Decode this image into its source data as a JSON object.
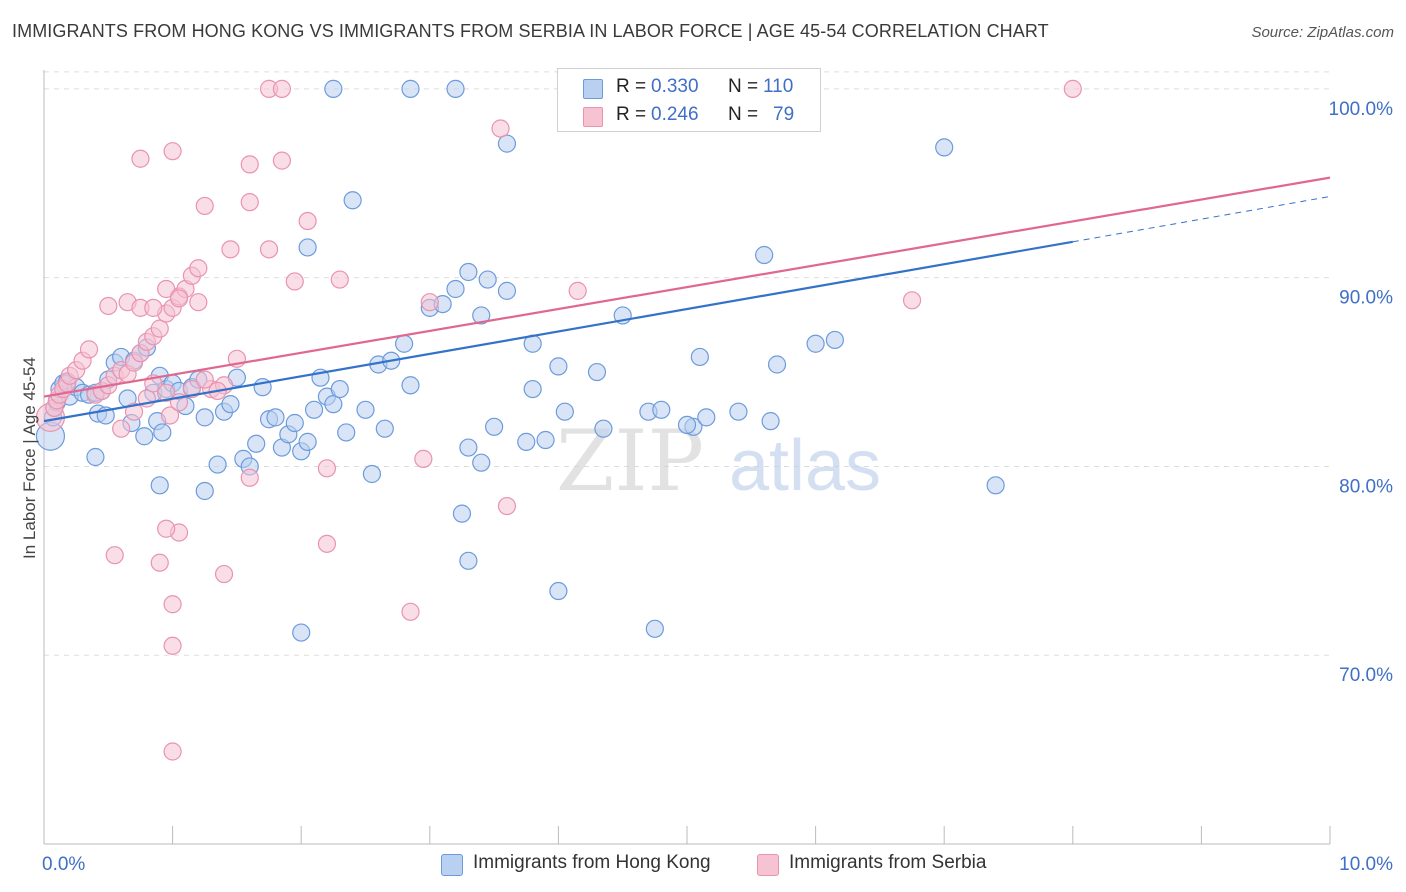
{
  "header": {
    "title": "IMMIGRANTS FROM HONG KONG VS IMMIGRANTS FROM SERBIA IN LABOR FORCE | AGE 45-54 CORRELATION CHART",
    "source": "Source: ZipAtlas.com"
  },
  "watermark": {
    "zip": "ZIP",
    "atlas": "atlas"
  },
  "legend": {
    "r_label": "R =",
    "n_label": "N =",
    "rows": [
      {
        "r": "0.330",
        "n": "110"
      },
      {
        "r": "0.246",
        "n": "79"
      }
    ]
  },
  "colors": {
    "hong_kong": "#6c9bdc",
    "hong_kong_fill": "#b9d0f0",
    "hong_kong_line": "#3372c9",
    "serbia": "#e993b0",
    "serbia_fill": "#f6c3d3",
    "serbia_line": "#e0688f",
    "axis_text": "#3f6fc6",
    "grid": "#dddddd"
  },
  "chart_data": {
    "type": "scatter",
    "title": "IMMIGRANTS FROM HONG KONG VS IMMIGRANTS FROM SERBIA IN LABOR FORCE | AGE 45-54 CORRELATION CHART",
    "xlabel": "",
    "ylabel": "In Labor Force | Age 45-54",
    "x_tick_labels": [
      "0.0%",
      "10.0%"
    ],
    "y_tick_labels": [
      "70.0%",
      "80.0%",
      "90.0%",
      "100.0%"
    ],
    "y_ticks": [
      70,
      80,
      90,
      100
    ],
    "xlim": [
      0,
      10
    ],
    "ylim": [
      60,
      101
    ],
    "grid": true,
    "legend_position": "top-center",
    "series": [
      {
        "name": "Immigrants from Hong Kong",
        "r": 0.33,
        "n": 110,
        "trend": {
          "x0": 0.0,
          "y0": 82.4,
          "x1": 8.0,
          "y1": 91.9,
          "dashed_to_x": 10.0,
          "dashed_to_y": 94.3
        },
        "points": [
          [
            0.05,
            81.6
          ],
          [
            0.07,
            82.6
          ],
          [
            0.08,
            83.1
          ],
          [
            0.1,
            83.4
          ],
          [
            0.12,
            84.1
          ],
          [
            0.15,
            84.4
          ],
          [
            0.18,
            84.5
          ],
          [
            0.2,
            83.7
          ],
          [
            0.25,
            84.2
          ],
          [
            0.3,
            83.9
          ],
          [
            0.35,
            83.8
          ],
          [
            0.4,
            83.9
          ],
          [
            0.45,
            84.0
          ],
          [
            0.5,
            84.6
          ],
          [
            0.55,
            85.5
          ],
          [
            0.6,
            85.8
          ],
          [
            0.7,
            85.6
          ],
          [
            0.75,
            86.0
          ],
          [
            0.8,
            86.3
          ],
          [
            0.85,
            83.9
          ],
          [
            0.9,
            84.8
          ],
          [
            0.95,
            84.1
          ],
          [
            1.0,
            84.4
          ],
          [
            1.05,
            84.0
          ],
          [
            1.1,
            83.2
          ],
          [
            1.15,
            84.2
          ],
          [
            0.42,
            82.8
          ],
          [
            0.48,
            82.7
          ],
          [
            0.65,
            83.6
          ],
          [
            0.68,
            82.3
          ],
          [
            0.78,
            81.6
          ],
          [
            0.88,
            82.4
          ],
          [
            0.92,
            81.8
          ],
          [
            1.2,
            84.6
          ],
          [
            1.25,
            82.6
          ],
          [
            1.35,
            80.1
          ],
          [
            1.4,
            82.9
          ],
          [
            1.45,
            83.3
          ],
          [
            1.5,
            84.7
          ],
          [
            1.55,
            80.4
          ],
          [
            1.6,
            80.0
          ],
          [
            1.65,
            81.2
          ],
          [
            1.7,
            84.2
          ],
          [
            1.75,
            82.5
          ],
          [
            1.8,
            82.6
          ],
          [
            1.85,
            81.0
          ],
          [
            1.9,
            81.7
          ],
          [
            1.95,
            82.3
          ],
          [
            2.0,
            80.8
          ],
          [
            2.05,
            81.3
          ],
          [
            2.1,
            83.0
          ],
          [
            2.15,
            84.7
          ],
          [
            2.2,
            83.7
          ],
          [
            2.25,
            83.3
          ],
          [
            2.3,
            84.1
          ],
          [
            2.35,
            81.8
          ],
          [
            2.5,
            83.0
          ],
          [
            2.6,
            85.4
          ],
          [
            2.65,
            82.0
          ],
          [
            2.7,
            85.6
          ],
          [
            2.8,
            86.5
          ],
          [
            2.85,
            84.3
          ],
          [
            3.0,
            88.4
          ],
          [
            3.1,
            88.6
          ],
          [
            3.2,
            89.4
          ],
          [
            3.3,
            90.3
          ],
          [
            3.4,
            88.0
          ],
          [
            3.45,
            89.9
          ],
          [
            3.6,
            89.3
          ],
          [
            3.8,
            86.5
          ],
          [
            4.0,
            85.3
          ],
          [
            4.3,
            85.0
          ],
          [
            4.5,
            88.0
          ],
          [
            4.7,
            82.9
          ],
          [
            4.8,
            83.0
          ],
          [
            5.05,
            82.1
          ],
          [
            5.1,
            85.8
          ],
          [
            5.15,
            82.6
          ],
          [
            5.6,
            91.2
          ],
          [
            5.7,
            85.4
          ],
          [
            6.0,
            86.5
          ],
          [
            6.15,
            86.7
          ],
          [
            7.0,
            96.9
          ],
          [
            7.4,
            79.0
          ],
          [
            0.4,
            80.5
          ],
          [
            0.9,
            79.0
          ],
          [
            1.25,
            78.7
          ],
          [
            2.55,
            79.6
          ],
          [
            2.0,
            71.2
          ],
          [
            3.25,
            77.5
          ],
          [
            3.3,
            75.0
          ],
          [
            3.3,
            81.0
          ],
          [
            3.4,
            80.2
          ],
          [
            3.5,
            82.1
          ],
          [
            4.0,
            73.4
          ],
          [
            3.75,
            81.3
          ],
          [
            3.8,
            84.1
          ],
          [
            3.9,
            81.4
          ],
          [
            4.05,
            82.9
          ],
          [
            4.35,
            82.0
          ],
          [
            4.75,
            71.4
          ],
          [
            5.0,
            82.2
          ],
          [
            5.4,
            82.9
          ],
          [
            5.65,
            82.4
          ],
          [
            2.4,
            94.1
          ],
          [
            2.05,
            91.6
          ],
          [
            2.25,
            100.0
          ],
          [
            2.85,
            100.0
          ],
          [
            3.2,
            100.0
          ],
          [
            3.6,
            97.1
          ]
        ]
      },
      {
        "name": "Immigrants from Serbia",
        "r": 0.246,
        "n": 79,
        "trend": {
          "x0": 0.0,
          "y0": 83.7,
          "x1": 10.0,
          "y1": 95.3
        },
        "points": [
          [
            0.05,
            82.6
          ],
          [
            0.08,
            83.1
          ],
          [
            0.1,
            83.5
          ],
          [
            0.12,
            83.8
          ],
          [
            0.15,
            84.1
          ],
          [
            0.18,
            84.4
          ],
          [
            0.2,
            84.8
          ],
          [
            0.25,
            85.1
          ],
          [
            0.3,
            85.6
          ],
          [
            0.35,
            86.2
          ],
          [
            0.4,
            83.8
          ],
          [
            0.45,
            84.0
          ],
          [
            0.5,
            84.3
          ],
          [
            0.55,
            84.8
          ],
          [
            0.6,
            85.1
          ],
          [
            0.65,
            84.9
          ],
          [
            0.7,
            85.5
          ],
          [
            0.75,
            86.0
          ],
          [
            0.8,
            86.6
          ],
          [
            0.85,
            86.9
          ],
          [
            0.9,
            87.3
          ],
          [
            0.95,
            88.1
          ],
          [
            1.0,
            88.4
          ],
          [
            1.05,
            89.0
          ],
          [
            1.1,
            89.4
          ],
          [
            1.15,
            90.1
          ],
          [
            1.2,
            90.5
          ],
          [
            1.3,
            84.1
          ],
          [
            1.4,
            84.3
          ],
          [
            1.5,
            85.7
          ],
          [
            0.6,
            82.0
          ],
          [
            0.7,
            82.9
          ],
          [
            0.8,
            83.6
          ],
          [
            0.85,
            84.4
          ],
          [
            0.95,
            83.9
          ],
          [
            0.98,
            82.7
          ],
          [
            1.05,
            83.4
          ],
          [
            1.15,
            84.1
          ],
          [
            1.25,
            84.6
          ],
          [
            1.35,
            84.0
          ],
          [
            0.5,
            88.5
          ],
          [
            0.65,
            88.7
          ],
          [
            0.75,
            88.4
          ],
          [
            0.85,
            88.4
          ],
          [
            0.95,
            89.4
          ],
          [
            1.05,
            88.9
          ],
          [
            1.2,
            88.7
          ],
          [
            1.45,
            91.5
          ],
          [
            1.6,
            94.0
          ],
          [
            1.75,
            91.5
          ],
          [
            1.85,
            96.2
          ],
          [
            1.95,
            89.8
          ],
          [
            2.05,
            93.0
          ],
          [
            2.3,
            89.9
          ],
          [
            3.0,
            88.7
          ],
          [
            4.15,
            89.3
          ],
          [
            6.75,
            88.8
          ],
          [
            1.25,
            93.8
          ],
          [
            0.75,
            96.3
          ],
          [
            1.6,
            96.0
          ],
          [
            1.0,
            96.7
          ],
          [
            1.75,
            100.0
          ],
          [
            1.85,
            100.0
          ],
          [
            3.55,
            97.9
          ],
          [
            8.0,
            100.0
          ],
          [
            1.05,
            76.5
          ],
          [
            0.95,
            76.7
          ],
          [
            0.55,
            75.3
          ],
          [
            0.9,
            74.9
          ],
          [
            1.4,
            74.3
          ],
          [
            1.0,
            72.7
          ],
          [
            1.0,
            70.5
          ],
          [
            1.0,
            64.9
          ],
          [
            1.6,
            79.4
          ],
          [
            2.2,
            75.9
          ],
          [
            2.2,
            79.9
          ],
          [
            2.85,
            72.3
          ],
          [
            2.95,
            80.4
          ],
          [
            3.6,
            77.9
          ]
        ]
      }
    ]
  },
  "bottom_legend": {
    "items": [
      "Immigrants from Hong Kong",
      "Immigrants from Serbia"
    ]
  }
}
